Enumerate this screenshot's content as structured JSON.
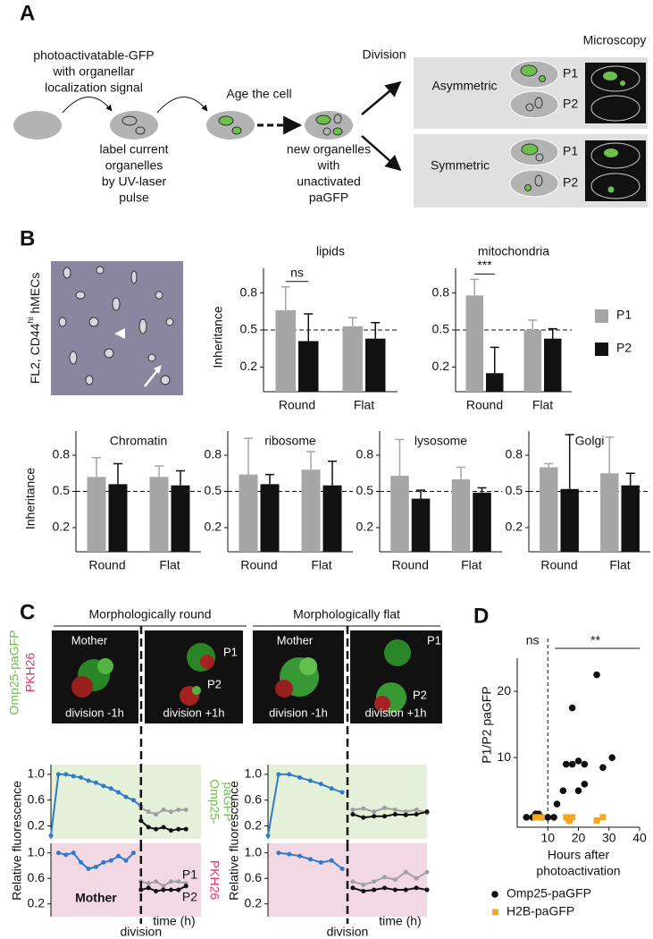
{
  "panel_a": {
    "label": "A",
    "start_text": [
      "photoactivatable-GFP",
      "with organellar",
      "localization signal"
    ],
    "label_text": [
      "label current",
      "organelles",
      "by UV-laser",
      "pulse"
    ],
    "age_text": "Age the cell",
    "new_text": [
      "new organelles",
      "with",
      "unactivated",
      "paGFP"
    ],
    "division": "Division",
    "microscopy": "Microscopy",
    "outcomes": [
      {
        "name": "Asymmetric",
        "daughters": [
          "P1",
          "P2"
        ]
      },
      {
        "name": "Symmetric",
        "daughters": [
          "P1",
          "P2"
        ]
      }
    ]
  },
  "panel_b": {
    "label": "B",
    "image_label": [
      "FL2, CD44",
      "hi",
      " hMECs"
    ]
  },
  "panel_c": {
    "label": "C",
    "headings": [
      "Morphologically round",
      "Morphologically flat"
    ],
    "side_labels": [
      "Omp25-paGFP",
      "PKH26"
    ],
    "images": [
      {
        "top": "Mother",
        "bottom": "division -1h"
      },
      {
        "p1": "P1",
        "p2": "P2",
        "bottom": "division +1h"
      },
      {
        "top": "Mother",
        "bottom": "division -1h"
      },
      {
        "p1": "P1",
        "p2": "P2",
        "bottom": "division +1h"
      }
    ]
  },
  "panel_d": {
    "label": "D"
  },
  "chart_data": [
    {
      "type": "bar",
      "title": "lipids",
      "y_label": "Inheritance",
      "categories": [
        "Round",
        "Flat"
      ],
      "series": [
        {
          "color": "#a6a6a6",
          "values": [
            0.66,
            0.53
          ],
          "errors": [
            0.19,
            0.07
          ]
        },
        {
          "color": "#111111",
          "values": [
            0.41,
            0.43
          ],
          "errors": [
            0.22,
            0.13
          ]
        }
      ],
      "ylim": [
        0,
        1
      ],
      "yticks": [
        0.2,
        0.5,
        0.8
      ],
      "reference_line": 0.5,
      "annotations": [
        {
          "text": "ns",
          "category": "Round"
        }
      ]
    },
    {
      "type": "bar",
      "title": "mitochondria",
      "categories": [
        "Round",
        "Flat"
      ],
      "legend": "right",
      "series": [
        {
          "name": "P1",
          "color": "#a6a6a6",
          "values": [
            0.78,
            0.5
          ],
          "errors": [
            0.13,
            0.08
          ]
        },
        {
          "name": "P2",
          "color": "#111111",
          "values": [
            0.15,
            0.43
          ],
          "errors": [
            0.21,
            0.08
          ]
        }
      ],
      "ylim": [
        0,
        1
      ],
      "yticks": [
        0.2,
        0.5,
        0.8
      ],
      "reference_line": 0.5,
      "annotations": [
        {
          "text": "***",
          "category": "Round"
        }
      ]
    },
    {
      "type": "bar",
      "title": "Chromatin",
      "y_label": "Inheritance",
      "categories": [
        "Round",
        "Flat"
      ],
      "series": [
        {
          "color": "#a6a6a6",
          "values": [
            0.62,
            0.62
          ],
          "errors": [
            0.16,
            0.09
          ]
        },
        {
          "color": "#111111",
          "values": [
            0.56,
            0.55
          ],
          "errors": [
            0.17,
            0.12
          ]
        }
      ],
      "ylim": [
        0,
        1
      ],
      "yticks": [
        0.2,
        0.5,
        0.8
      ],
      "reference_line": 0.5
    },
    {
      "type": "bar",
      "title": "ribosome",
      "categories": [
        "Round",
        "Flat"
      ],
      "series": [
        {
          "color": "#a6a6a6",
          "values": [
            0.64,
            0.68
          ],
          "errors": [
            0.3,
            0.15
          ]
        },
        {
          "color": "#111111",
          "values": [
            0.56,
            0.55
          ],
          "errors": [
            0.08,
            0.2
          ]
        }
      ],
      "ylim": [
        0,
        1
      ],
      "yticks": [
        0.2,
        0.5,
        0.8
      ],
      "reference_line": 0.5
    },
    {
      "type": "bar",
      "title": "lysosome",
      "categories": [
        "Round",
        "Flat"
      ],
      "series": [
        {
          "color": "#a6a6a6",
          "values": [
            0.63,
            0.6
          ],
          "errors": [
            0.3,
            0.1
          ]
        },
        {
          "color": "#111111",
          "values": [
            0.44,
            0.49
          ],
          "errors": [
            0.07,
            0.04
          ]
        }
      ],
      "ylim": [
        0,
        1
      ],
      "yticks": [
        0.2,
        0.5,
        0.8
      ],
      "reference_line": 0.5
    },
    {
      "type": "bar",
      "title": "Golgi",
      "categories": [
        "Round",
        "Flat"
      ],
      "series": [
        {
          "color": "#a6a6a6",
          "values": [
            0.7,
            0.65
          ],
          "errors": [
            0.03,
            0.3
          ]
        },
        {
          "color": "#111111",
          "values": [
            0.52,
            0.55
          ],
          "errors": [
            0.45,
            0.1
          ]
        }
      ],
      "ylim": [
        0,
        1
      ],
      "yticks": [
        0.2,
        0.5,
        0.8
      ],
      "reference_line": 0.5
    },
    {
      "type": "line",
      "y_label": "Relative fluorescence",
      "side_label": [
        "Omp25-",
        "paGFP"
      ],
      "side_color": "#6cc04a",
      "background": "#e4f0d8",
      "xlim": [
        0,
        20
      ],
      "ylim": [
        0,
        1.15
      ],
      "yticks": [
        0.2,
        0.6,
        {
          "value": 1,
          "label": "1.0"
        }
      ],
      "division": {
        "x": 12
      },
      "series": [
        {
          "color": "#2f7bc8",
          "x": [
            0,
            1,
            2,
            3,
            4,
            5,
            6,
            7,
            8,
            9,
            10,
            11,
            12
          ],
          "values": [
            0.05,
            1.0,
            1.0,
            0.97,
            0.95,
            0.9,
            0.87,
            0.82,
            0.78,
            0.72,
            0.65,
            0.6,
            0.5
          ]
        },
        {
          "color": "#a0a0a0",
          "x": [
            12,
            13,
            14,
            15,
            16,
            17,
            18
          ],
          "values": [
            0.48,
            0.42,
            0.38,
            0.45,
            0.42,
            0.45,
            0.45
          ]
        },
        {
          "color": "#111111",
          "x": [
            12,
            13,
            14,
            15,
            16,
            17,
            18
          ],
          "values": [
            0.28,
            0.18,
            0.15,
            0.18,
            0.13,
            0.15,
            0.15
          ]
        }
      ]
    },
    {
      "type": "line",
      "y_label": "Relative fluorescence",
      "background": "#e4f0d8",
      "xlim": [
        0,
        15
      ],
      "ylim": [
        0,
        1.15
      ],
      "yticks": [
        0.2,
        0.6,
        {
          "value": 1,
          "label": "1.0"
        }
      ],
      "division": {
        "x": 7.5
      },
      "series": [
        {
          "color": "#2f7bc8",
          "x": [
            0,
            1,
            2,
            3,
            4,
            5,
            6,
            7
          ],
          "values": [
            0.05,
            1.0,
            1.0,
            0.95,
            0.9,
            0.85,
            0.78,
            0.72
          ]
        },
        {
          "color": "#a0a0a0",
          "x": [
            8,
            9,
            10,
            11,
            12,
            13,
            14,
            15
          ],
          "values": [
            0.45,
            0.47,
            0.42,
            0.48,
            0.45,
            0.42,
            0.45,
            0.4
          ]
        },
        {
          "color": "#111111",
          "x": [
            8,
            9,
            10,
            11,
            12,
            13,
            14,
            15
          ],
          "values": [
            0.38,
            0.33,
            0.35,
            0.35,
            0.38,
            0.37,
            0.38,
            0.42
          ]
        }
      ]
    },
    {
      "type": "line",
      "side_label": [
        "PKH26"
      ],
      "side_color": "#e0306f",
      "background": "#f2d8e2",
      "x_label": "time (h)",
      "xlim": [
        0,
        20
      ],
      "ylim": [
        0,
        1.15
      ],
      "yticks": [
        0.2,
        0.6,
        {
          "value": 1,
          "label": "1.0"
        }
      ],
      "division": {
        "x": 12,
        "label": "division"
      },
      "series": [
        {
          "name": "Mother",
          "color": "#2f7bc8",
          "x": [
            1,
            2,
            3,
            4,
            5,
            6,
            7,
            8,
            9,
            10,
            11
          ],
          "values": [
            1.0,
            0.97,
            1.0,
            0.85,
            0.75,
            0.78,
            0.85,
            0.88,
            0.95,
            0.88,
            1.0
          ]
        },
        {
          "name": "P1",
          "color": "#a0a0a0",
          "x": [
            12,
            13,
            14,
            15,
            16,
            17,
            18
          ],
          "values": [
            0.55,
            0.52,
            0.55,
            0.48,
            0.55,
            0.55,
            0.52
          ]
        },
        {
          "name": "P2",
          "color": "#111111",
          "x": [
            12,
            13,
            14,
            15,
            16,
            17,
            18
          ],
          "values": [
            0.42,
            0.45,
            0.4,
            0.42,
            0.42,
            0.42,
            0.48
          ]
        }
      ]
    },
    {
      "type": "line",
      "background": "#f2d8e2",
      "x_label": "time (h)",
      "xlim": [
        0,
        15
      ],
      "ylim": [
        0,
        1.15
      ],
      "yticks": [
        0.2,
        0.6,
        {
          "value": 1,
          "label": "1.0"
        }
      ],
      "division": {
        "x": 7.5,
        "label": "division"
      },
      "series": [
        {
          "color": "#2f7bc8",
          "x": [
            1,
            2,
            3,
            4,
            5,
            6,
            7
          ],
          "values": [
            1.0,
            0.98,
            0.95,
            0.9,
            0.85,
            0.88,
            0.75
          ]
        },
        {
          "color": "#a0a0a0",
          "x": [
            8,
            9,
            10,
            11,
            12,
            13,
            14,
            15
          ],
          "values": [
            0.55,
            0.5,
            0.55,
            0.62,
            0.58,
            0.7,
            0.6,
            0.7
          ]
        },
        {
          "color": "#111111",
          "x": [
            8,
            9,
            10,
            11,
            12,
            13,
            14,
            15
          ],
          "values": [
            0.45,
            0.4,
            0.42,
            0.45,
            0.42,
            0.42,
            0.45,
            0.42
          ]
        }
      ]
    },
    {
      "type": "scatter",
      "y_label": "P1/P2 paGFP",
      "x_label": [
        "Hours after",
        "photoactivation"
      ],
      "xlim": [
        0,
        40
      ],
      "ylim": [
        -0.5,
        25
      ],
      "xticks": [
        10,
        20,
        30,
        40
      ],
      "yticks": [
        10,
        20
      ],
      "reference_x": 10,
      "annotations": [
        {
          "text": "ns",
          "side": "left"
        },
        {
          "text": "**",
          "side": "right"
        }
      ],
      "series": [
        {
          "name": "Omp25-paGFP",
          "color": "#111111",
          "marker": "circle",
          "x": [
            3,
            5,
            6,
            7,
            8,
            10,
            12,
            13,
            15,
            16,
            17,
            18,
            18,
            20,
            20,
            22,
            22,
            26,
            28,
            31
          ],
          "values": [
            1,
            1,
            1.5,
            1.5,
            1,
            1,
            1,
            3,
            5,
            9,
            0.5,
            17.5,
            9,
            5,
            9.5,
            6,
            9,
            22.5,
            8.5,
            10
          ]
        },
        {
          "name": "H2B-paGFP",
          "color": "#f5a623",
          "marker": "square",
          "x": [
            6,
            8,
            16,
            17,
            18,
            26,
            28
          ],
          "values": [
            1,
            1,
            1,
            0.5,
            1,
            0.5,
            1
          ]
        }
      ]
    }
  ]
}
